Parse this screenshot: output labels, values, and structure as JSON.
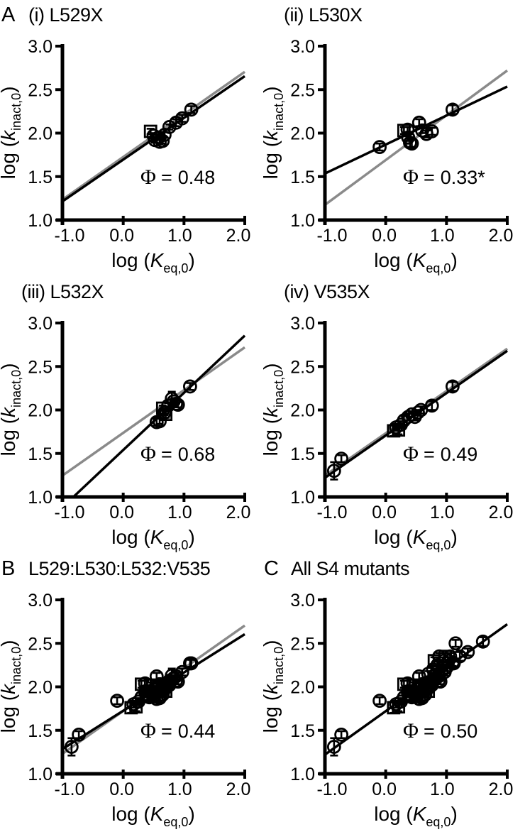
{
  "page": {
    "background": "#ffffff"
  },
  "style": {
    "fit_line_color": "#000000",
    "reference_line_color": "#8a8a8a",
    "marker_color": "#000000",
    "axis_color": "#000000",
    "phi_symbol": "Φ",
    "phi_equals": "="
  },
  "axes": {
    "xlabel": {
      "prefix": "log (",
      "symbol": "K",
      "subscript": "eq,0",
      "suffix": ")"
    },
    "ylabel": {
      "prefix": "log (",
      "symbol": "k",
      "subscript": "inact,0",
      "suffix": ")"
    },
    "xlim": [
      -1.0,
      2.0
    ],
    "ylim": [
      1.0,
      3.0
    ],
    "xticks": [
      -1.0,
      0.0,
      1.0,
      2.0
    ],
    "yticks": [
      1.0,
      1.5,
      2.0,
      2.5,
      3.0
    ],
    "xtick_labels": [
      "-1.0",
      "0.0",
      "1.0",
      "2.0"
    ],
    "ytick_labels": [
      "1.0",
      "1.5",
      "2.0",
      "2.5",
      "3.0"
    ],
    "xtick_dx": [
      10,
      -2,
      -6,
      -9
    ]
  },
  "chart_data": [
    {
      "id": "panel-a-i",
      "type": "scatter",
      "letter": "A",
      "title": "(i) L529X",
      "phi_value": "0.48",
      "phi_label": "Φ = 0.48",
      "fit_line": {
        "x": [
          -1.0,
          2.0
        ],
        "y": [
          1.215,
          2.655
        ]
      },
      "reference_line": {
        "x": [
          -1.0,
          2.0
        ],
        "y": [
          1.235,
          2.705
        ]
      },
      "points": [
        {
          "x": 0.45,
          "y": 2.02,
          "m": "s",
          "e": 0.03
        },
        {
          "x": 0.5,
          "y": 1.97,
          "m": "c",
          "e": 0.03
        },
        {
          "x": 0.52,
          "y": 1.92,
          "m": "c",
          "e": 0.03
        },
        {
          "x": 0.58,
          "y": 1.95,
          "m": "c",
          "e": 0.03
        },
        {
          "x": 0.6,
          "y": 1.9,
          "m": "c",
          "e": 0.03
        },
        {
          "x": 0.65,
          "y": 1.91,
          "m": "c",
          "e": 0.03
        },
        {
          "x": 0.68,
          "y": 1.98,
          "m": "c",
          "e": 0.03
        },
        {
          "x": 0.76,
          "y": 2.07,
          "m": "c",
          "e": 0.03
        },
        {
          "x": 0.87,
          "y": 2.12,
          "m": "c",
          "e": 0.04
        },
        {
          "x": 0.97,
          "y": 2.17,
          "m": "c",
          "e": 0.04
        },
        {
          "x": 1.12,
          "y": 2.27,
          "m": "c",
          "e": 0.04
        }
      ]
    },
    {
      "id": "panel-a-ii",
      "type": "scatter",
      "letter": "",
      "title": "(ii) L530X",
      "phi_value": "0.33*",
      "phi_label": "Φ = 0.33*",
      "fit_line": {
        "x": [
          -1.0,
          2.0
        ],
        "y": [
          1.535,
          2.535
        ]
      },
      "reference_line": {
        "x": [
          -1.0,
          2.0
        ],
        "y": [
          1.175,
          2.72
        ]
      },
      "points": [
        {
          "x": -0.1,
          "y": 1.84,
          "m": "c",
          "e": 0.04
        },
        {
          "x": 0.3,
          "y": 2.03,
          "m": "s",
          "e": 0.04
        },
        {
          "x": 0.36,
          "y": 2.04,
          "m": "c",
          "e": 0.03
        },
        {
          "x": 0.37,
          "y": 1.95,
          "m": "c",
          "e": 0.04
        },
        {
          "x": 0.4,
          "y": 1.89,
          "m": "c",
          "e": 0.05
        },
        {
          "x": 0.43,
          "y": 1.88,
          "m": "c",
          "e": 0.04
        },
        {
          "x": 0.55,
          "y": 2.12,
          "m": "c",
          "e": 0.04
        },
        {
          "x": 0.6,
          "y": 2.03,
          "m": "c",
          "e": 0.03
        },
        {
          "x": 0.67,
          "y": 1.99,
          "m": "c",
          "e": 0.04
        },
        {
          "x": 0.76,
          "y": 2.02,
          "m": "c",
          "e": 0.04
        },
        {
          "x": 1.1,
          "y": 2.27,
          "m": "c",
          "e": 0.05
        }
      ]
    },
    {
      "id": "panel-a-iii",
      "type": "scatter",
      "letter": "",
      "title": "(iii) L532X",
      "phi_value": "0.68",
      "phi_label": "Φ = 0.68",
      "fit_line": {
        "x": [
          -0.82,
          2.0
        ],
        "y": [
          1.0,
          2.855
        ]
      },
      "reference_line": {
        "x": [
          -1.0,
          2.0
        ],
        "y": [
          1.245,
          2.72
        ]
      },
      "points": [
        {
          "x": 0.55,
          "y": 1.86,
          "m": "c",
          "e": 0.04
        },
        {
          "x": 0.6,
          "y": 1.87,
          "m": "c",
          "e": 0.03
        },
        {
          "x": 0.65,
          "y": 2.02,
          "m": "s",
          "e": 0.03
        },
        {
          "x": 0.68,
          "y": 1.97,
          "m": "c",
          "e": 0.03
        },
        {
          "x": 0.7,
          "y": 1.95,
          "m": "s",
          "e": 0.04
        },
        {
          "x": 0.74,
          "y": 2.05,
          "m": "c",
          "e": 0.03
        },
        {
          "x": 0.8,
          "y": 2.13,
          "m": "c",
          "e": 0.08
        },
        {
          "x": 0.83,
          "y": 2.1,
          "m": "c",
          "e": 0.03
        },
        {
          "x": 0.87,
          "y": 2.07,
          "m": "c",
          "e": 0.04
        },
        {
          "x": 0.9,
          "y": 2.06,
          "m": "c",
          "e": 0.03
        },
        {
          "x": 1.1,
          "y": 2.27,
          "m": "c",
          "e": 0.04
        }
      ]
    },
    {
      "id": "panel-a-iv",
      "type": "scatter",
      "letter": "",
      "title": "(iv) V535X",
      "phi_value": "0.49",
      "phi_label": "Φ = 0.49",
      "fit_line": {
        "x": [
          -1.0,
          2.0
        ],
        "y": [
          1.22,
          2.68
        ]
      },
      "reference_line": {
        "x": [
          -1.0,
          2.0
        ],
        "y": [
          1.245,
          2.705
        ]
      },
      "points": [
        {
          "x": -0.85,
          "y": 1.3,
          "m": "c",
          "e": 0.1
        },
        {
          "x": -0.73,
          "y": 1.44,
          "m": "c",
          "e": 0.04
        },
        {
          "x": 0.13,
          "y": 1.76,
          "m": "s",
          "e": 0.06
        },
        {
          "x": 0.17,
          "y": 1.8,
          "m": "c",
          "e": 0.04
        },
        {
          "x": 0.21,
          "y": 1.77,
          "m": "s",
          "e": 0.05
        },
        {
          "x": 0.25,
          "y": 1.83,
          "m": "c",
          "e": 0.04
        },
        {
          "x": 0.3,
          "y": 1.88,
          "m": "c",
          "e": 0.05
        },
        {
          "x": 0.37,
          "y": 1.92,
          "m": "c",
          "e": 0.04
        },
        {
          "x": 0.43,
          "y": 1.95,
          "m": "c",
          "e": 0.03
        },
        {
          "x": 0.48,
          "y": 1.92,
          "m": "c",
          "e": 0.04
        },
        {
          "x": 0.53,
          "y": 1.97,
          "m": "c",
          "e": 0.03
        },
        {
          "x": 0.58,
          "y": 2.0,
          "m": "c",
          "e": 0.04
        },
        {
          "x": 0.76,
          "y": 2.05,
          "m": "c",
          "e": 0.05
        },
        {
          "x": 1.1,
          "y": 2.27,
          "m": "c",
          "e": 0.05
        }
      ]
    },
    {
      "id": "panel-b",
      "type": "scatter",
      "letter": "B",
      "title": "L529:L530:L532:V535",
      "phi_value": "0.44",
      "phi_label": "Φ = 0.44",
      "fit_line": {
        "x": [
          -1.0,
          2.0
        ],
        "y": [
          1.285,
          2.605
        ]
      },
      "reference_line": {
        "x": [
          -1.0,
          2.0
        ],
        "y": [
          1.23,
          2.705
        ]
      },
      "points": [
        {
          "x": 0.45,
          "y": 2.02,
          "m": "s",
          "e": 0.03
        },
        {
          "x": 0.5,
          "y": 1.97,
          "m": "c",
          "e": 0.03
        },
        {
          "x": 0.52,
          "y": 1.92,
          "m": "c",
          "e": 0.03
        },
        {
          "x": 0.58,
          "y": 1.95,
          "m": "c",
          "e": 0.03
        },
        {
          "x": 0.6,
          "y": 1.9,
          "m": "c",
          "e": 0.03
        },
        {
          "x": 0.65,
          "y": 1.91,
          "m": "c",
          "e": 0.03
        },
        {
          "x": 0.68,
          "y": 1.98,
          "m": "c",
          "e": 0.03
        },
        {
          "x": 0.76,
          "y": 2.07,
          "m": "c",
          "e": 0.03
        },
        {
          "x": 0.87,
          "y": 2.12,
          "m": "c",
          "e": 0.04
        },
        {
          "x": 0.97,
          "y": 2.17,
          "m": "c",
          "e": 0.04
        },
        {
          "x": 1.12,
          "y": 2.27,
          "m": "c",
          "e": 0.04
        },
        {
          "x": -0.1,
          "y": 1.84,
          "m": "c",
          "e": 0.04
        },
        {
          "x": 0.3,
          "y": 2.03,
          "m": "s",
          "e": 0.04
        },
        {
          "x": 0.36,
          "y": 2.04,
          "m": "c",
          "e": 0.03
        },
        {
          "x": 0.37,
          "y": 1.95,
          "m": "c",
          "e": 0.04
        },
        {
          "x": 0.4,
          "y": 1.89,
          "m": "c",
          "e": 0.05
        },
        {
          "x": 0.43,
          "y": 1.88,
          "m": "c",
          "e": 0.04
        },
        {
          "x": 0.55,
          "y": 2.12,
          "m": "c",
          "e": 0.04
        },
        {
          "x": 0.6,
          "y": 2.03,
          "m": "c",
          "e": 0.03
        },
        {
          "x": 0.67,
          "y": 1.99,
          "m": "c",
          "e": 0.04
        },
        {
          "x": 0.76,
          "y": 2.02,
          "m": "c",
          "e": 0.04
        },
        {
          "x": 1.1,
          "y": 2.27,
          "m": "c",
          "e": 0.05
        },
        {
          "x": 0.55,
          "y": 1.86,
          "m": "c",
          "e": 0.04
        },
        {
          "x": 0.6,
          "y": 1.87,
          "m": "c",
          "e": 0.03
        },
        {
          "x": 0.65,
          "y": 2.02,
          "m": "s",
          "e": 0.03
        },
        {
          "x": 0.68,
          "y": 1.97,
          "m": "c",
          "e": 0.03
        },
        {
          "x": 0.7,
          "y": 1.95,
          "m": "s",
          "e": 0.04
        },
        {
          "x": 0.74,
          "y": 2.05,
          "m": "c",
          "e": 0.03
        },
        {
          "x": 0.8,
          "y": 2.13,
          "m": "c",
          "e": 0.08
        },
        {
          "x": 0.83,
          "y": 2.1,
          "m": "c",
          "e": 0.03
        },
        {
          "x": 0.87,
          "y": 2.07,
          "m": "c",
          "e": 0.04
        },
        {
          "x": 0.9,
          "y": 2.06,
          "m": "c",
          "e": 0.03
        },
        {
          "x": -0.85,
          "y": 1.31,
          "m": "c",
          "e": 0.1
        },
        {
          "x": -0.73,
          "y": 1.45,
          "m": "c",
          "e": 0.04
        },
        {
          "x": 0.13,
          "y": 1.76,
          "m": "s",
          "e": 0.06
        },
        {
          "x": 0.17,
          "y": 1.8,
          "m": "c",
          "e": 0.04
        },
        {
          "x": 0.21,
          "y": 1.77,
          "m": "s",
          "e": 0.05
        },
        {
          "x": 0.25,
          "y": 1.83,
          "m": "c",
          "e": 0.04
        },
        {
          "x": 0.3,
          "y": 1.88,
          "m": "c",
          "e": 0.05
        },
        {
          "x": 0.37,
          "y": 1.92,
          "m": "c",
          "e": 0.04
        },
        {
          "x": 0.43,
          "y": 1.95,
          "m": "c",
          "e": 0.03
        },
        {
          "x": 0.48,
          "y": 1.92,
          "m": "c",
          "e": 0.04
        },
        {
          "x": 0.53,
          "y": 1.97,
          "m": "c",
          "e": 0.03
        },
        {
          "x": 0.58,
          "y": 2.0,
          "m": "c",
          "e": 0.04
        },
        {
          "x": 0.76,
          "y": 2.05,
          "m": "c",
          "e": 0.05
        }
      ]
    },
    {
      "id": "panel-c",
      "type": "scatter",
      "letter": "C",
      "title": "All S4 mutants",
      "phi_value": "0.50",
      "phi_label": "Φ = 0.50",
      "fit_line": {
        "x": [
          -1.0,
          2.0
        ],
        "y": [
          1.22,
          2.72
        ]
      },
      "reference_line": null,
      "points": [
        {
          "x": 0.45,
          "y": 2.02,
          "m": "s",
          "e": 0.03
        },
        {
          "x": 0.5,
          "y": 1.97,
          "m": "c",
          "e": 0.03
        },
        {
          "x": 0.52,
          "y": 1.92,
          "m": "c",
          "e": 0.03
        },
        {
          "x": 0.58,
          "y": 1.95,
          "m": "c",
          "e": 0.03
        },
        {
          "x": 0.6,
          "y": 1.9,
          "m": "c",
          "e": 0.03
        },
        {
          "x": 0.65,
          "y": 1.91,
          "m": "c",
          "e": 0.03
        },
        {
          "x": 0.68,
          "y": 1.98,
          "m": "c",
          "e": 0.03
        },
        {
          "x": 0.76,
          "y": 2.07,
          "m": "c",
          "e": 0.03
        },
        {
          "x": 0.87,
          "y": 2.12,
          "m": "c",
          "e": 0.04
        },
        {
          "x": 0.97,
          "y": 2.17,
          "m": "c",
          "e": 0.04
        },
        {
          "x": 1.12,
          "y": 2.27,
          "m": "c",
          "e": 0.04
        },
        {
          "x": -0.1,
          "y": 1.84,
          "m": "c",
          "e": 0.04
        },
        {
          "x": 0.3,
          "y": 2.03,
          "m": "s",
          "e": 0.04
        },
        {
          "x": 0.36,
          "y": 2.04,
          "m": "c",
          "e": 0.03
        },
        {
          "x": 0.37,
          "y": 1.95,
          "m": "c",
          "e": 0.04
        },
        {
          "x": 0.4,
          "y": 1.89,
          "m": "c",
          "e": 0.05
        },
        {
          "x": 0.43,
          "y": 1.88,
          "m": "c",
          "e": 0.04
        },
        {
          "x": 0.55,
          "y": 2.12,
          "m": "c",
          "e": 0.04
        },
        {
          "x": 0.6,
          "y": 2.03,
          "m": "c",
          "e": 0.03
        },
        {
          "x": 0.67,
          "y": 1.99,
          "m": "c",
          "e": 0.04
        },
        {
          "x": 0.76,
          "y": 2.02,
          "m": "c",
          "e": 0.04
        },
        {
          "x": 1.1,
          "y": 2.27,
          "m": "c",
          "e": 0.05
        },
        {
          "x": 0.55,
          "y": 1.86,
          "m": "c",
          "e": 0.04
        },
        {
          "x": 0.6,
          "y": 1.87,
          "m": "c",
          "e": 0.03
        },
        {
          "x": 0.65,
          "y": 2.02,
          "m": "s",
          "e": 0.03
        },
        {
          "x": 0.68,
          "y": 1.97,
          "m": "c",
          "e": 0.03
        },
        {
          "x": 0.7,
          "y": 1.95,
          "m": "s",
          "e": 0.04
        },
        {
          "x": 0.74,
          "y": 2.05,
          "m": "c",
          "e": 0.03
        },
        {
          "x": 0.8,
          "y": 2.13,
          "m": "c",
          "e": 0.08
        },
        {
          "x": 0.83,
          "y": 2.1,
          "m": "c",
          "e": 0.03
        },
        {
          "x": 0.87,
          "y": 2.07,
          "m": "c",
          "e": 0.04
        },
        {
          "x": 0.9,
          "y": 2.06,
          "m": "c",
          "e": 0.03
        },
        {
          "x": -0.85,
          "y": 1.31,
          "m": "c",
          "e": 0.1
        },
        {
          "x": -0.73,
          "y": 1.45,
          "m": "c",
          "e": 0.04
        },
        {
          "x": 0.13,
          "y": 1.76,
          "m": "s",
          "e": 0.06
        },
        {
          "x": 0.17,
          "y": 1.8,
          "m": "c",
          "e": 0.04
        },
        {
          "x": 0.21,
          "y": 1.77,
          "m": "s",
          "e": 0.05
        },
        {
          "x": 0.25,
          "y": 1.83,
          "m": "c",
          "e": 0.04
        },
        {
          "x": 0.3,
          "y": 1.88,
          "m": "c",
          "e": 0.05
        },
        {
          "x": 0.37,
          "y": 1.92,
          "m": "c",
          "e": 0.04
        },
        {
          "x": 0.43,
          "y": 1.95,
          "m": "c",
          "e": 0.03
        },
        {
          "x": 0.48,
          "y": 1.92,
          "m": "c",
          "e": 0.04
        },
        {
          "x": 0.53,
          "y": 1.97,
          "m": "c",
          "e": 0.03
        },
        {
          "x": 0.58,
          "y": 2.0,
          "m": "c",
          "e": 0.04
        },
        {
          "x": 0.76,
          "y": 2.05,
          "m": "c",
          "e": 0.05
        },
        {
          "x": 0.7,
          "y": 2.15,
          "m": "c",
          "e": 0.03
        },
        {
          "x": 0.78,
          "y": 2.2,
          "m": "c",
          "e": 0.04
        },
        {
          "x": 0.8,
          "y": 2.3,
          "m": "s",
          "e": 0.04
        },
        {
          "x": 0.85,
          "y": 2.25,
          "m": "c",
          "e": 0.04
        },
        {
          "x": 0.88,
          "y": 2.35,
          "m": "c",
          "e": 0.04
        },
        {
          "x": 0.92,
          "y": 2.18,
          "m": "c",
          "e": 0.04
        },
        {
          "x": 0.95,
          "y": 2.3,
          "m": "c",
          "e": 0.04
        },
        {
          "x": 0.98,
          "y": 2.35,
          "m": "s",
          "e": 0.04
        },
        {
          "x": 1.0,
          "y": 2.22,
          "m": "c",
          "e": 0.04
        },
        {
          "x": 1.03,
          "y": 2.3,
          "m": "c",
          "e": 0.04
        },
        {
          "x": 1.06,
          "y": 2.35,
          "m": "c",
          "e": 0.04
        },
        {
          "x": 1.1,
          "y": 2.28,
          "m": "c",
          "e": 0.04
        },
        {
          "x": 1.15,
          "y": 2.5,
          "m": "c",
          "e": 0.04
        },
        {
          "x": 1.22,
          "y": 2.35,
          "m": "c",
          "e": 0.05
        },
        {
          "x": 1.35,
          "y": 2.4,
          "m": "c",
          "e": 0.04
        },
        {
          "x": 1.6,
          "y": 2.52,
          "m": "c",
          "e": 0.05
        }
      ]
    }
  ]
}
